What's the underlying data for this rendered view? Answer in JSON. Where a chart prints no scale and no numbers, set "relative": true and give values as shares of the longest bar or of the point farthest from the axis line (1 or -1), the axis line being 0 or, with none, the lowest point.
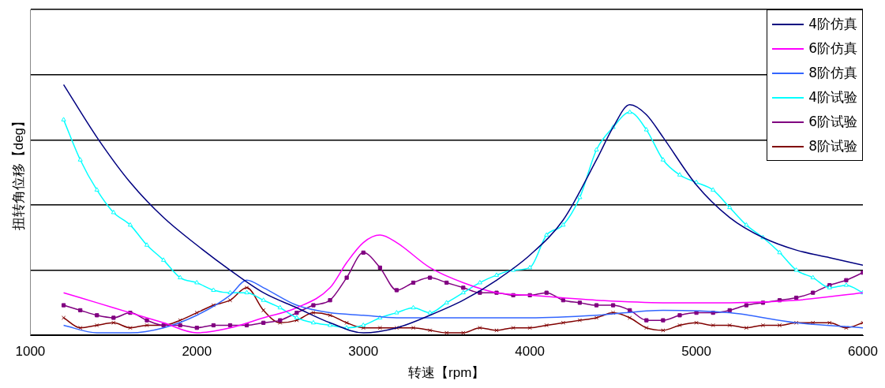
{
  "chart_data": {
    "type": "line",
    "relative": true,
    "xlabel": "转速【rpm】",
    "ylabel": "扭转角位移【deg】",
    "xlim": [
      1000,
      6000
    ],
    "xticks": [
      1000,
      2000,
      3000,
      4000,
      5000,
      6000
    ],
    "grid": "y",
    "legend": "top right",
    "line_style": "solid",
    "series": [
      {
        "name": "4阶仿真",
        "color": "#000080",
        "marker": "none",
        "x": [
          1200,
          1400,
          1600,
          1800,
          2000,
          2200,
          2400,
          2600,
          2800,
          3000,
          3200,
          3400,
          3600,
          3800,
          4000,
          4200,
          4400,
          4500,
          4600,
          4700,
          4800,
          5000,
          5200,
          5400,
          5600,
          5800,
          6000
        ],
        "values": [
          1.0,
          0.79,
          0.61,
          0.47,
          0.36,
          0.26,
          0.17,
          0.11,
          0.05,
          0.01,
          0.03,
          0.08,
          0.14,
          0.22,
          0.32,
          0.46,
          0.7,
          0.83,
          0.92,
          0.88,
          0.79,
          0.6,
          0.47,
          0.39,
          0.34,
          0.31,
          0.28
        ]
      },
      {
        "name": "6阶仿真",
        "color": "#ff00ff",
        "marker": "none",
        "x": [
          1200,
          1400,
          1600,
          1800,
          2000,
          2200,
          2400,
          2600,
          2800,
          2900,
          3000,
          3100,
          3200,
          3400,
          3600,
          3800,
          4000,
          4400,
          4800,
          5200,
          5600,
          6000
        ],
        "values": [
          0.17,
          0.13,
          0.09,
          0.05,
          0.01,
          0.03,
          0.07,
          0.11,
          0.19,
          0.29,
          0.37,
          0.4,
          0.37,
          0.27,
          0.21,
          0.17,
          0.16,
          0.14,
          0.13,
          0.13,
          0.14,
          0.17
        ]
      },
      {
        "name": "8阶仿真",
        "color": "#3366ff",
        "marker": "none",
        "x": [
          1200,
          1400,
          1600,
          1800,
          2000,
          2200,
          2300,
          2400,
          2600,
          2800,
          3000,
          3200,
          3600,
          4000,
          4400,
          4800,
          5200,
          5600,
          6000
        ],
        "values": [
          0.04,
          0.01,
          0.01,
          0.03,
          0.08,
          0.16,
          0.22,
          0.19,
          0.12,
          0.09,
          0.08,
          0.07,
          0.07,
          0.07,
          0.08,
          0.1,
          0.09,
          0.05,
          0.03
        ]
      },
      {
        "name": "4阶试验",
        "color": "#00ffff",
        "marker": "triangle",
        "x": [
          1200,
          1300,
          1400,
          1500,
          1600,
          1700,
          1800,
          1900,
          2000,
          2100,
          2200,
          2300,
          2400,
          2500,
          2600,
          2700,
          2800,
          2900,
          3000,
          3100,
          3200,
          3300,
          3400,
          3500,
          3600,
          3700,
          3800,
          3900,
          4000,
          4100,
          4200,
          4300,
          4400,
          4500,
          4600,
          4700,
          4800,
          4900,
          5000,
          5100,
          5200,
          5300,
          5400,
          5500,
          5600,
          5700,
          5800,
          5900,
          6000
        ],
        "values": [
          0.86,
          0.7,
          0.58,
          0.49,
          0.44,
          0.36,
          0.3,
          0.23,
          0.21,
          0.18,
          0.17,
          0.17,
          0.14,
          0.11,
          0.07,
          0.05,
          0.04,
          0.03,
          0.04,
          0.07,
          0.09,
          0.11,
          0.09,
          0.13,
          0.17,
          0.21,
          0.24,
          0.26,
          0.27,
          0.4,
          0.44,
          0.55,
          0.74,
          0.83,
          0.89,
          0.82,
          0.7,
          0.64,
          0.61,
          0.58,
          0.51,
          0.44,
          0.39,
          0.33,
          0.26,
          0.23,
          0.19,
          0.2,
          0.17
        ]
      },
      {
        "name": "6阶试验",
        "color": "#800080",
        "marker": "square",
        "x": [
          1200,
          1300,
          1400,
          1500,
          1600,
          1700,
          1800,
          1900,
          2000,
          2100,
          2200,
          2300,
          2400,
          2500,
          2600,
          2700,
          2800,
          2900,
          3000,
          3100,
          3200,
          3300,
          3400,
          3500,
          3600,
          3700,
          3800,
          3900,
          4000,
          4100,
          4200,
          4300,
          4400,
          4500,
          4600,
          4700,
          4800,
          4900,
          5000,
          5100,
          5200,
          5300,
          5400,
          5500,
          5600,
          5700,
          5800,
          5900,
          6000
        ],
        "values": [
          0.12,
          0.1,
          0.08,
          0.07,
          0.09,
          0.06,
          0.04,
          0.04,
          0.03,
          0.04,
          0.04,
          0.04,
          0.05,
          0.06,
          0.09,
          0.12,
          0.14,
          0.23,
          0.33,
          0.27,
          0.18,
          0.21,
          0.23,
          0.21,
          0.19,
          0.17,
          0.17,
          0.16,
          0.16,
          0.17,
          0.14,
          0.13,
          0.12,
          0.12,
          0.1,
          0.06,
          0.06,
          0.08,
          0.09,
          0.09,
          0.1,
          0.12,
          0.13,
          0.14,
          0.15,
          0.17,
          0.2,
          0.22,
          0.25
        ]
      },
      {
        "name": "8阶试验",
        "color": "#800000",
        "marker": "cross",
        "x": [
          1200,
          1300,
          1400,
          1500,
          1600,
          1700,
          1800,
          1900,
          2000,
          2100,
          2200,
          2300,
          2400,
          2500,
          2600,
          2700,
          2800,
          2900,
          3000,
          3100,
          3200,
          3300,
          3400,
          3500,
          3600,
          3700,
          3800,
          3900,
          4000,
          4100,
          4200,
          4300,
          4400,
          4500,
          4600,
          4700,
          4800,
          4900,
          5000,
          5100,
          5200,
          5300,
          5400,
          5500,
          5600,
          5700,
          5800,
          5900,
          6000
        ],
        "values": [
          0.07,
          0.03,
          0.04,
          0.05,
          0.03,
          0.04,
          0.04,
          0.06,
          0.09,
          0.12,
          0.14,
          0.19,
          0.1,
          0.05,
          0.06,
          0.09,
          0.08,
          0.05,
          0.03,
          0.03,
          0.03,
          0.03,
          0.02,
          0.01,
          0.01,
          0.03,
          0.02,
          0.03,
          0.03,
          0.04,
          0.05,
          0.06,
          0.07,
          0.09,
          0.07,
          0.03,
          0.02,
          0.04,
          0.05,
          0.04,
          0.04,
          0.03,
          0.04,
          0.04,
          0.05,
          0.05,
          0.05,
          0.03,
          0.05
        ]
      }
    ]
  }
}
